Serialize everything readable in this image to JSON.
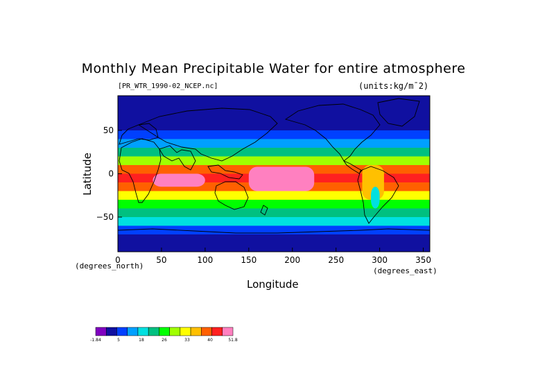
{
  "header": {
    "title": "Monthly Mean Precipitable Water for entire atmosphere",
    "filename": "[PR_WTR_1990-02_NCEP.nc]",
    "units": "(units:kg/m¯2)"
  },
  "axes": {
    "ylabel": "Latitude",
    "ylabel_units": "(degrees_north)",
    "xlabel": "Longitude",
    "xlabel_units": "(degrees_east)",
    "yticks": [
      "50",
      "0",
      "−50"
    ],
    "xticks": [
      "0",
      "50",
      "100",
      "150",
      "200",
      "250",
      "300",
      "350"
    ]
  },
  "chart_data": {
    "type": "heatmap",
    "title": "Monthly Mean Precipitable Water for entire atmosphere",
    "xlabel": "Longitude",
    "ylabel": "Latitude",
    "xlim": [
      0,
      357.5
    ],
    "ylim": [
      -90,
      90
    ],
    "x_ticks": [
      0,
      50,
      100,
      150,
      200,
      250,
      300,
      350
    ],
    "y_ticks": [
      50,
      0,
      -50
    ],
    "value_range": [
      -1.84,
      51.8
    ],
    "colorbar": {
      "labels": [
        "-1.84",
        "5",
        "18",
        "26",
        "33",
        "40",
        "51.8"
      ],
      "colors": [
        "#8000c0",
        "#1010a0",
        "#0040ff",
        "#00a0ff",
        "#00e0e0",
        "#00c080",
        "#00ff00",
        "#a0ff00",
        "#ffff00",
        "#ffc000",
        "#ff6000",
        "#ff2020",
        "#ff80c0"
      ]
    },
    "lat_bands": [
      {
        "lat": [
          -90,
          -80
        ],
        "value": 3
      },
      {
        "lat": [
          -80,
          -70
        ],
        "value": 6
      },
      {
        "lat": [
          -70,
          -60
        ],
        "value": 10
      },
      {
        "lat": [
          -60,
          -50
        ],
        "value": 15
      },
      {
        "lat": [
          -50,
          -40
        ],
        "value": 20
      },
      {
        "lat": [
          -40,
          -30
        ],
        "value": 26
      },
      {
        "lat": [
          -30,
          -20
        ],
        "value": 33
      },
      {
        "lat": [
          -20,
          -10
        ],
        "value": 42
      },
      {
        "lat": [
          -10,
          0
        ],
        "value": 46
      },
      {
        "lat": [
          0,
          10
        ],
        "value": 40
      },
      {
        "lat": [
          10,
          20
        ],
        "value": 30
      },
      {
        "lat": [
          20,
          30
        ],
        "value": 20
      },
      {
        "lat": [
          30,
          40
        ],
        "value": 14
      },
      {
        "lat": [
          40,
          50
        ],
        "value": 10
      },
      {
        "lat": [
          50,
          60
        ],
        "value": 6
      },
      {
        "lat": [
          60,
          70
        ],
        "value": 4
      },
      {
        "lat": [
          70,
          90
        ],
        "value": 3
      }
    ],
    "regions": [
      {
        "lon": [
          150,
          225
        ],
        "lat": [
          -20,
          8
        ],
        "value": 50
      },
      {
        "lon": [
          40,
          100
        ],
        "lat": [
          -15,
          0
        ],
        "value": 48
      },
      {
        "lon": [
          280,
          305
        ],
        "lat": [
          -30,
          10
        ],
        "value": 36
      },
      {
        "lon": [
          290,
          300
        ],
        "lat": [
          -40,
          -15
        ],
        "value": 18
      }
    ]
  }
}
